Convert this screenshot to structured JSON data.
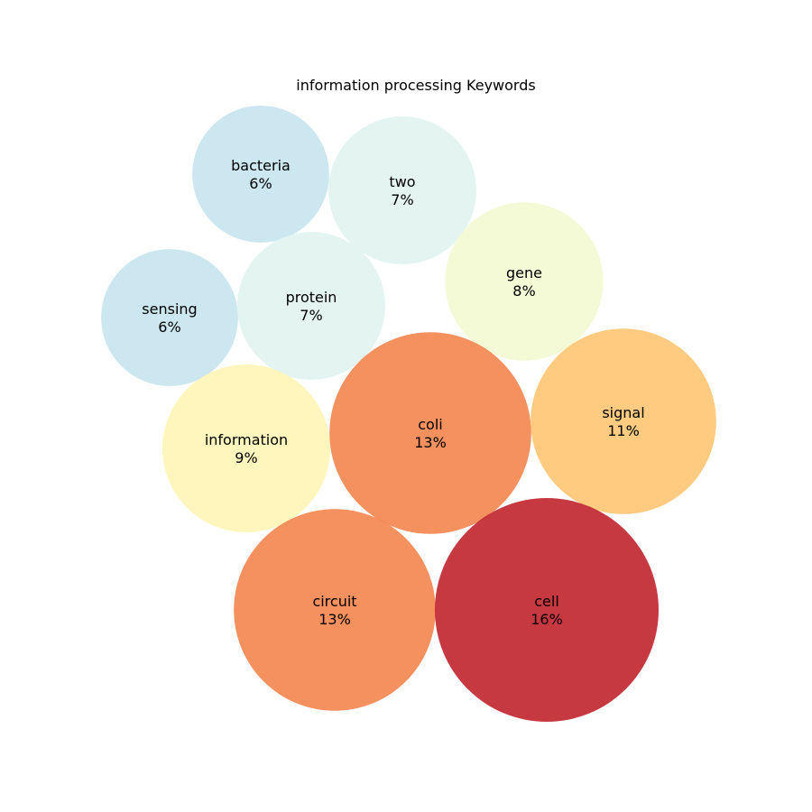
{
  "chart_data": {
    "type": "bubble",
    "title": "information processing Keywords",
    "series": [
      {
        "keyword": "bacteria",
        "percent": 6,
        "label": "6%",
        "color": "#c6e4ee"
      },
      {
        "keyword": "two",
        "percent": 7,
        "label": "7%",
        "color": "#e0f3f0"
      },
      {
        "keyword": "gene",
        "percent": 8,
        "label": "8%",
        "color": "#f4f9d2"
      },
      {
        "keyword": "sensing",
        "percent": 6,
        "label": "6%",
        "color": "#c6e4ee"
      },
      {
        "keyword": "protein",
        "percent": 7,
        "label": "7%",
        "color": "#e0f3f0"
      },
      {
        "keyword": "information",
        "percent": 9,
        "label": "9%",
        "color": "#fff5b6"
      },
      {
        "keyword": "coli",
        "percent": 13,
        "label": "13%",
        "color": "#f4844e"
      },
      {
        "keyword": "signal",
        "percent": 11,
        "label": "11%",
        "color": "#fec573"
      },
      {
        "keyword": "circuit",
        "percent": 13,
        "label": "13%",
        "color": "#f4844e"
      },
      {
        "keyword": "cell",
        "percent": 16,
        "label": "16%",
        "color": "#c0232c"
      }
    ]
  }
}
